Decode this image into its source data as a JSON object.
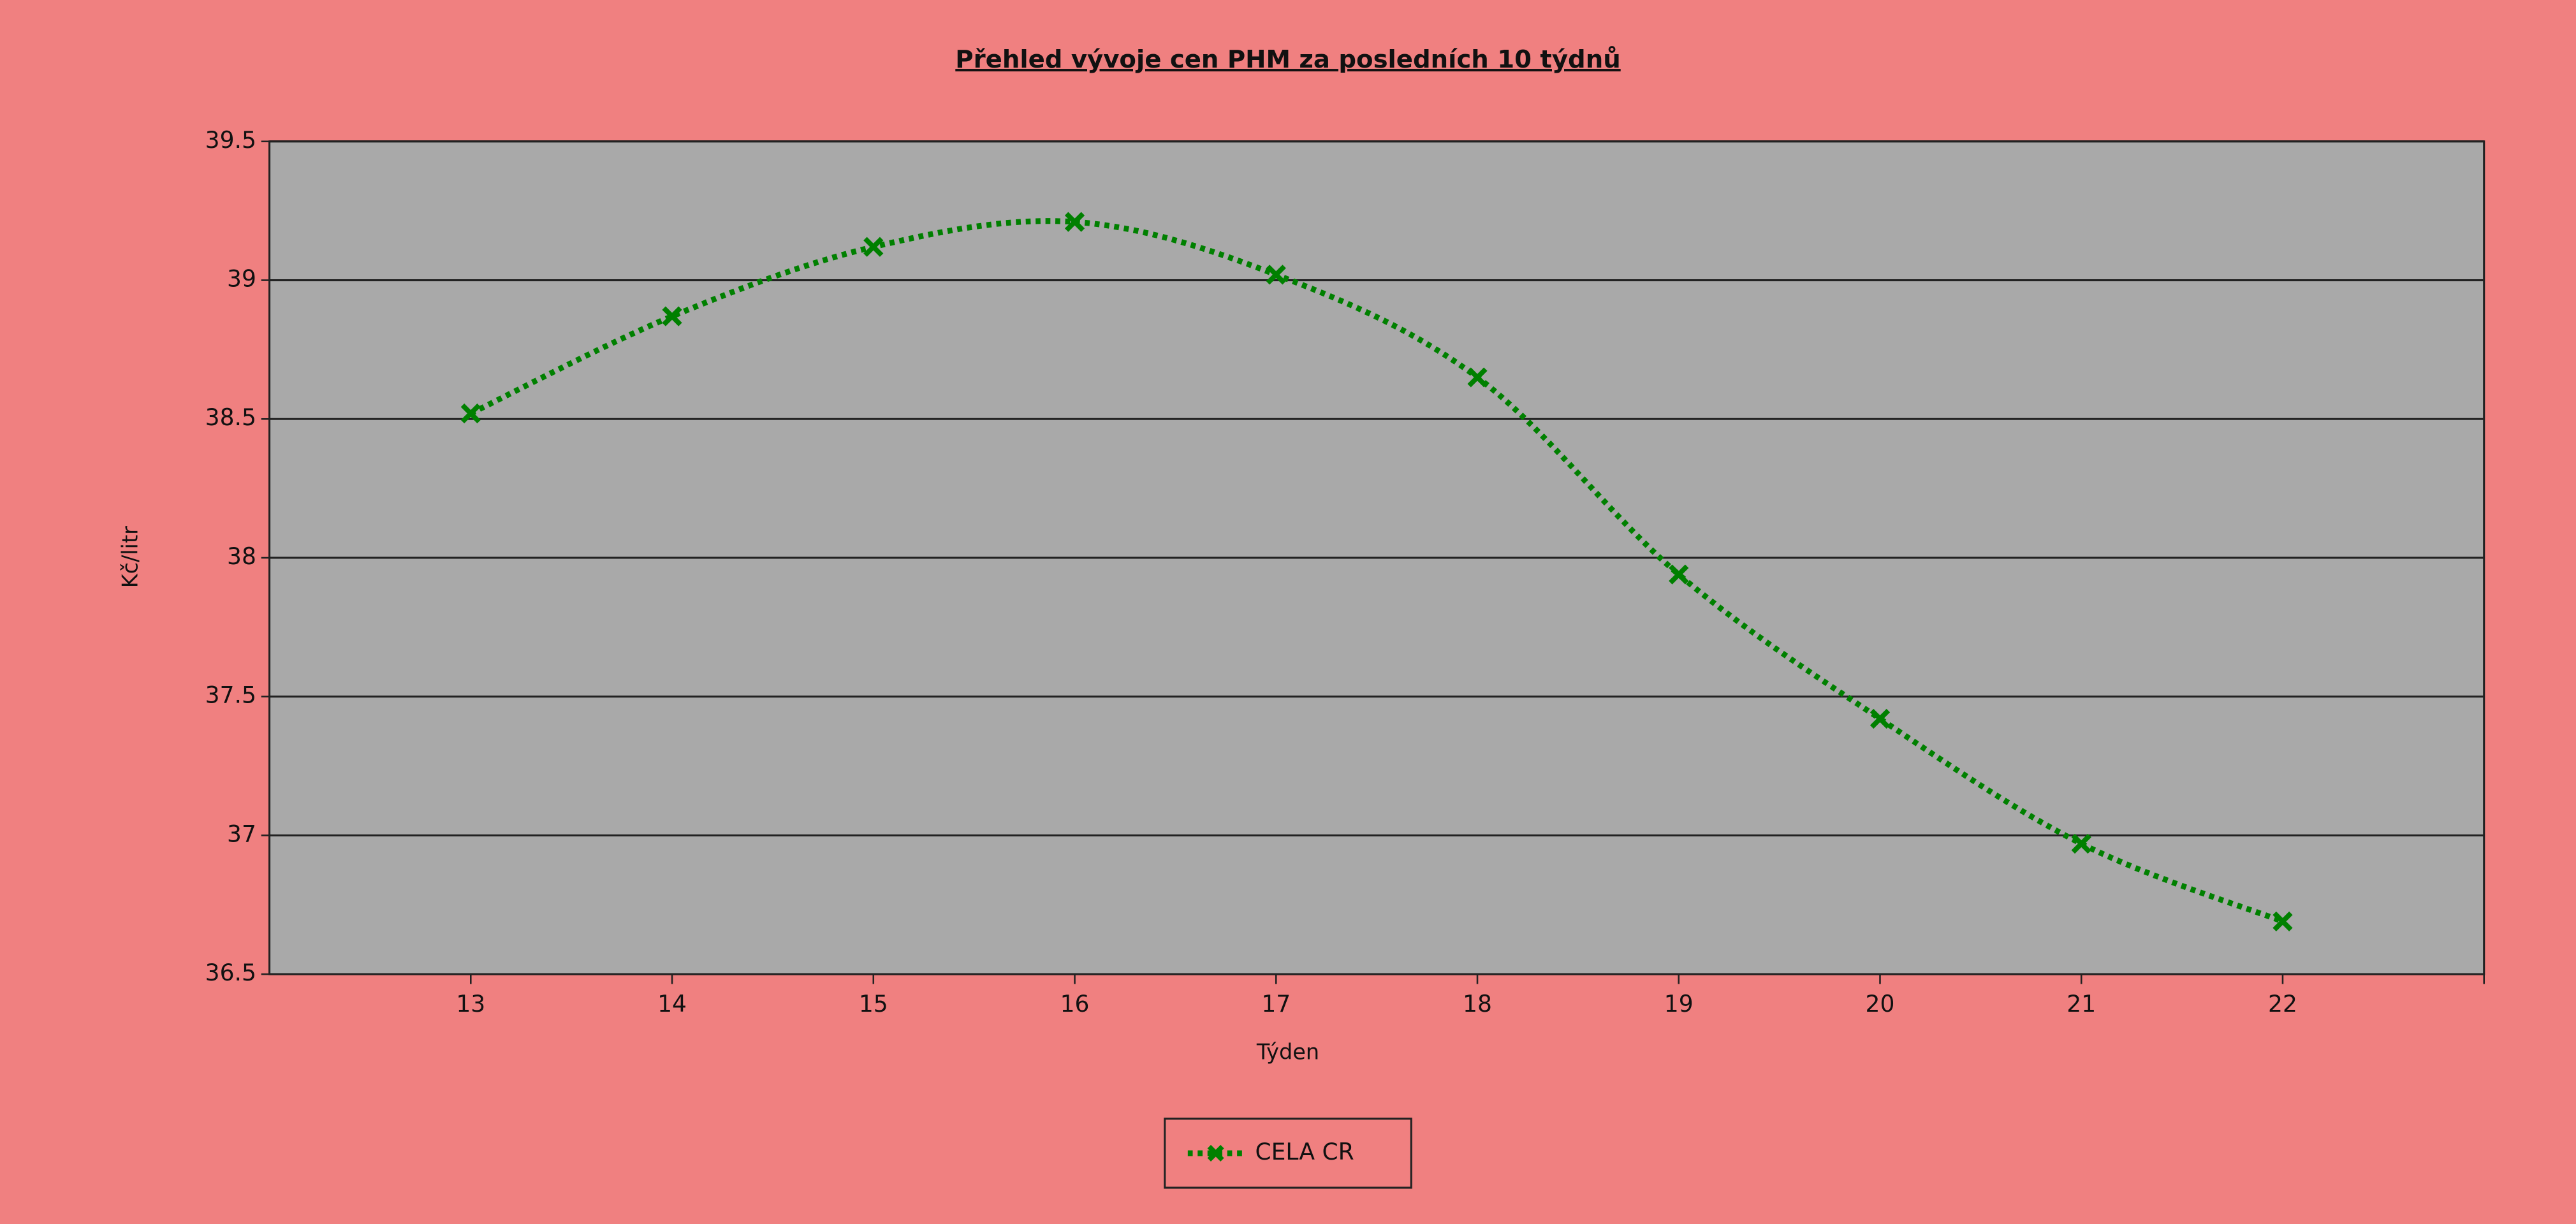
{
  "chart_data": {
    "type": "line",
    "title": "Přehled vývoje cen PHM za posledních 10 týdnů",
    "xlabel": "Týden",
    "ylabel": "Kč/litr",
    "x": [
      13,
      14,
      15,
      16,
      17,
      18,
      19,
      20,
      21,
      22
    ],
    "series": [
      {
        "name": "CELA CR",
        "color": "#008000",
        "values": [
          38.52,
          38.87,
          39.12,
          39.21,
          39.02,
          38.65,
          37.94,
          37.42,
          36.97,
          36.69
        ]
      }
    ],
    "xlim": [
      12,
      23
    ],
    "xticks": [
      13,
      14,
      15,
      16,
      17,
      18,
      19,
      20,
      21,
      22
    ],
    "ylim": [
      36.5,
      39.5
    ],
    "yticks": [
      36.5,
      37,
      37.5,
      38,
      38.5,
      39,
      39.5
    ],
    "grid": true,
    "legend": "bottom"
  }
}
